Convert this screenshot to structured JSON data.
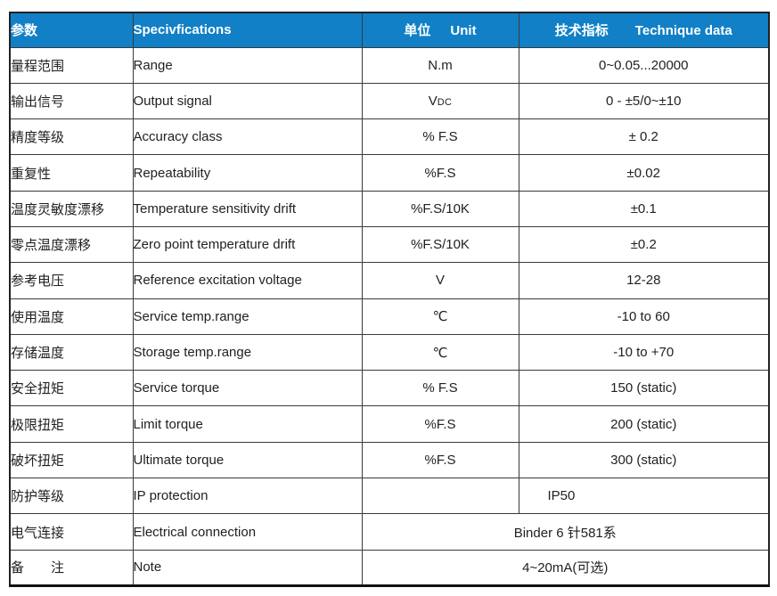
{
  "table": {
    "header": {
      "param_zh": "参数",
      "spec_en": "Specivfications",
      "unit_zh": "单位",
      "unit_en": "Unit",
      "tech_zh": "技术指标",
      "tech_en": "Technique data"
    },
    "rows": [
      {
        "zh": "量程范围",
        "en": "Range",
        "unit": "N.m",
        "value": "0~0.05...20000"
      },
      {
        "zh": "输出信号",
        "en": "Output signal",
        "unit": "V",
        "unit_sub": "DC",
        "value": "0 - ±5/0~±10"
      },
      {
        "zh": "精度等级",
        "en": "Accuracy class",
        "unit": "% F.S",
        "value": "± 0.2"
      },
      {
        "zh": "重复性",
        "en": "Repeatability",
        "unit": "%F.S",
        "value": "±0.02"
      },
      {
        "zh": "温度灵敏度漂移",
        "en": "Temperature sensitivity drift",
        "unit": "%F.S/10K",
        "value": "±0.1"
      },
      {
        "zh": "零点温度漂移",
        "en": "Zero point temperature drift",
        "unit": "%F.S/10K",
        "value": "±0.2"
      },
      {
        "zh": "参考电压",
        "en": "Reference excitation voltage",
        "unit": "V",
        "value": "12-28"
      },
      {
        "zh": "使用温度",
        "en": "Service temp.range",
        "unit": "℃",
        "value": "-10 to 60"
      },
      {
        "zh": "存储温度",
        "en": "Storage temp.range",
        "unit": "℃",
        "value": "-10 to +70"
      },
      {
        "zh": "安全扭矩",
        "en": "Service torque",
        "unit": "% F.S",
        "value": "150 (static)"
      },
      {
        "zh": "极限扭矩",
        "en": "Limit torque",
        "unit": "%F.S",
        "value": "200 (static)"
      },
      {
        "zh": "破坏扭矩",
        "en": "Ultimate torque",
        "unit": "%F.S",
        "value": "300 (static)"
      },
      {
        "zh": "防护等级",
        "en": "IP protection",
        "unit": "",
        "value": "IP50",
        "value_align": "left"
      },
      {
        "zh": "电气连接",
        "en": "Electrical connection",
        "merged": true,
        "value": "Binder 6 针581系"
      },
      {
        "zh": "备　　注",
        "en": "Note",
        "merged": true,
        "value": "4~20mA(可选)"
      }
    ],
    "colors": {
      "header_bg": "#1180C6",
      "header_text": "#ffffff",
      "grid_line": "#3a3a3a",
      "body_text": "#212121"
    }
  }
}
